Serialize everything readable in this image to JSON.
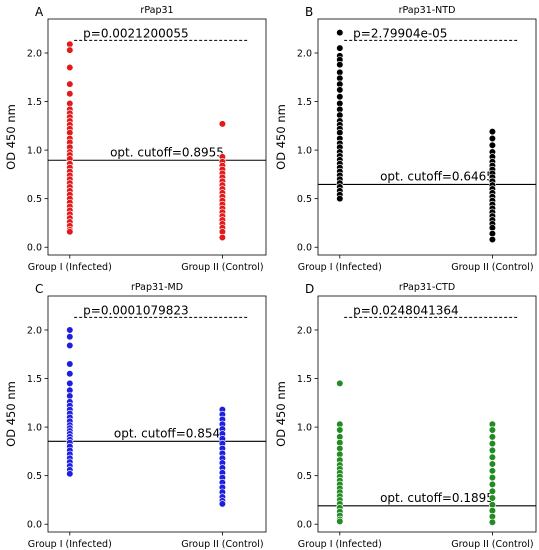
{
  "chart_data": [
    {
      "type": "scatter",
      "panel_letter": "A",
      "title": "rPap31",
      "ylabel": "OD 450 nm",
      "categories": [
        "Group I (Infected)",
        "Group II (Control)"
      ],
      "yticks": [
        "0.0",
        "0.5",
        "1.0",
        "1.5",
        "2.0"
      ],
      "ylim": [
        -0.08,
        2.35
      ],
      "color": "#e31a1c",
      "p_value_label": "p=0.0021200055",
      "p_line_y": 2.13,
      "cutoff_label": "opt. cutoff=0.8955",
      "cutoff": 0.8955,
      "series": [
        {
          "category": "Group I (Infected)",
          "values": [
            2.09,
            2.03,
            1.85,
            1.68,
            1.58,
            1.48,
            1.42,
            1.38,
            1.34,
            1.3,
            1.26,
            1.22,
            1.18,
            1.12,
            1.08,
            1.03,
            0.98,
            0.95,
            0.91,
            0.86,
            0.82,
            0.78,
            0.74,
            0.7,
            0.66,
            0.62,
            0.58,
            0.54,
            0.5,
            0.46,
            0.42,
            0.38,
            0.34,
            0.3,
            0.26,
            0.22,
            0.18,
            0.16
          ]
        },
        {
          "category": "Group II (Control)",
          "values": [
            1.27,
            0.93,
            0.88,
            0.84,
            0.8,
            0.76,
            0.72,
            0.68,
            0.64,
            0.6,
            0.56,
            0.52,
            0.48,
            0.44,
            0.4,
            0.36,
            0.32,
            0.28,
            0.24,
            0.2,
            0.16,
            0.1
          ]
        }
      ]
    },
    {
      "type": "scatter",
      "panel_letter": "B",
      "title": "rPap31-NTD",
      "ylabel": "OD 450 nm",
      "categories": [
        "Group I (Infected)",
        "Group II (Control)"
      ],
      "yticks": [
        "0.0",
        "0.5",
        "1.0",
        "1.5",
        "2.0"
      ],
      "ylim": [
        -0.08,
        2.35
      ],
      "color": "#000000",
      "p_value_label": "p=2.79904e-05",
      "p_line_y": 2.13,
      "cutoff_label": "opt. cutoff=0.6465",
      "cutoff": 0.6465,
      "series": [
        {
          "category": "Group I (Infected)",
          "values": [
            2.21,
            2.05,
            1.97,
            1.93,
            1.88,
            1.8,
            1.74,
            1.68,
            1.62,
            1.55,
            1.48,
            1.42,
            1.36,
            1.3,
            1.26,
            1.22,
            1.18,
            1.12,
            1.07,
            1.03,
            0.98,
            0.94,
            0.9,
            0.86,
            0.82,
            0.78,
            0.74,
            0.7,
            0.66,
            0.62,
            0.58,
            0.54,
            0.5
          ]
        },
        {
          "category": "Group II (Control)",
          "values": [
            1.19,
            1.12,
            1.05,
            0.98,
            0.93,
            0.88,
            0.84,
            0.8,
            0.76,
            0.72,
            0.68,
            0.64,
            0.6,
            0.56,
            0.52,
            0.48,
            0.44,
            0.4,
            0.36,
            0.32,
            0.28,
            0.24,
            0.2,
            0.14,
            0.08
          ]
        }
      ]
    },
    {
      "type": "scatter",
      "panel_letter": "C",
      "title": "rPap31-MD",
      "ylabel": "OD 450 nm",
      "categories": [
        "Group I (Infected)",
        "Group II (Control)"
      ],
      "yticks": [
        "0.0",
        "0.5",
        "1.0",
        "1.5",
        "2.0"
      ],
      "ylim": [
        -0.08,
        2.35
      ],
      "color": "#1f1fe0",
      "p_value_label": "p=0.0001079823",
      "p_line_y": 2.13,
      "cutoff_label": "opt. cutoff=0.854",
      "cutoff": 0.854,
      "series": [
        {
          "category": "Group I (Infected)",
          "values": [
            2.0,
            1.93,
            1.84,
            1.65,
            1.55,
            1.45,
            1.38,
            1.32,
            1.26,
            1.22,
            1.18,
            1.14,
            1.1,
            1.06,
            1.02,
            0.99,
            0.96,
            0.93,
            0.9,
            0.87,
            0.84,
            0.8,
            0.76,
            0.72,
            0.68,
            0.64,
            0.6,
            0.56,
            0.52
          ]
        },
        {
          "category": "Group II (Control)",
          "values": [
            1.18,
            1.13,
            1.08,
            1.03,
            0.98,
            0.93,
            0.88,
            0.83,
            0.78,
            0.73,
            0.68,
            0.63,
            0.58,
            0.53,
            0.48,
            0.43,
            0.38,
            0.33,
            0.28,
            0.24,
            0.21
          ]
        }
      ]
    },
    {
      "type": "scatter",
      "panel_letter": "D",
      "title": "rPap31-CTD",
      "ylabel": "OD 450 nm",
      "categories": [
        "Group I (Infected)",
        "Group II (Control)"
      ],
      "yticks": [
        "0.0",
        "0.5",
        "1.0",
        "1.5",
        "2.0"
      ],
      "ylim": [
        -0.08,
        2.35
      ],
      "color": "#228b22",
      "p_value_label": "p=0.0248041364",
      "p_line_y": 2.13,
      "cutoff_label": "opt. cutoff=0.1895",
      "cutoff": 0.1895,
      "series": [
        {
          "category": "Group I (Infected)",
          "values": [
            1.45,
            1.03,
            0.97,
            0.9,
            0.84,
            0.78,
            0.72,
            0.66,
            0.61,
            0.57,
            0.53,
            0.49,
            0.45,
            0.41,
            0.37,
            0.33,
            0.29,
            0.25,
            0.21,
            0.17,
            0.13,
            0.09,
            0.05,
            0.03
          ]
        },
        {
          "category": "Group II (Control)",
          "values": [
            1.03,
            0.97,
            0.9,
            0.83,
            0.76,
            0.69,
            0.62,
            0.55,
            0.48,
            0.41,
            0.34,
            0.27,
            0.2,
            0.14,
            0.08,
            0.02
          ]
        }
      ]
    }
  ]
}
